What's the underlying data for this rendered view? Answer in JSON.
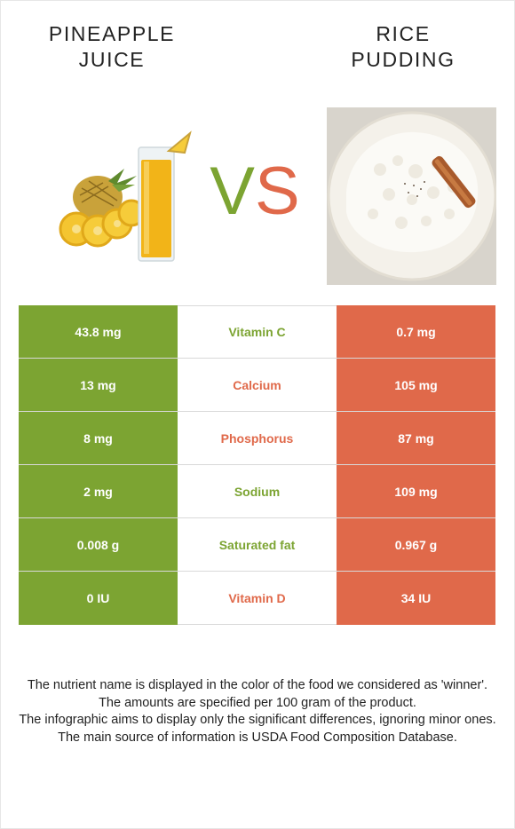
{
  "left_food": {
    "title_line1": "PINEAPPLE",
    "title_line2": "JUICE",
    "color": "#7ca432"
  },
  "right_food": {
    "title_line1": "RICE",
    "title_line2": "PUDDING",
    "color": "#e0694a"
  },
  "vs": {
    "v": "V",
    "s": "S"
  },
  "rows": [
    {
      "left": "43.8 mg",
      "nutrient": "Vitamin C",
      "right": "0.7 mg",
      "winner": "left"
    },
    {
      "left": "13 mg",
      "nutrient": "Calcium",
      "right": "105 mg",
      "winner": "right"
    },
    {
      "left": "8 mg",
      "nutrient": "Phosphorus",
      "right": "87 mg",
      "winner": "right"
    },
    {
      "left": "2 mg",
      "nutrient": "Sodium",
      "right": "109 mg",
      "winner": "left"
    },
    {
      "left": "0.008 g",
      "nutrient": "Saturated fat",
      "right": "0.967 g",
      "winner": "left"
    },
    {
      "left": "0 IU",
      "nutrient": "Vitamin D",
      "right": "34 IU",
      "winner": "right"
    }
  ],
  "notes": [
    "The nutrient name is displayed in the color of the food we considered as 'winner'.",
    "The amounts are specified per 100 gram of the product.",
    "The infographic aims to display only the significant differences, ignoring minor ones.",
    "The main source of information is USDA Food Composition Database."
  ]
}
